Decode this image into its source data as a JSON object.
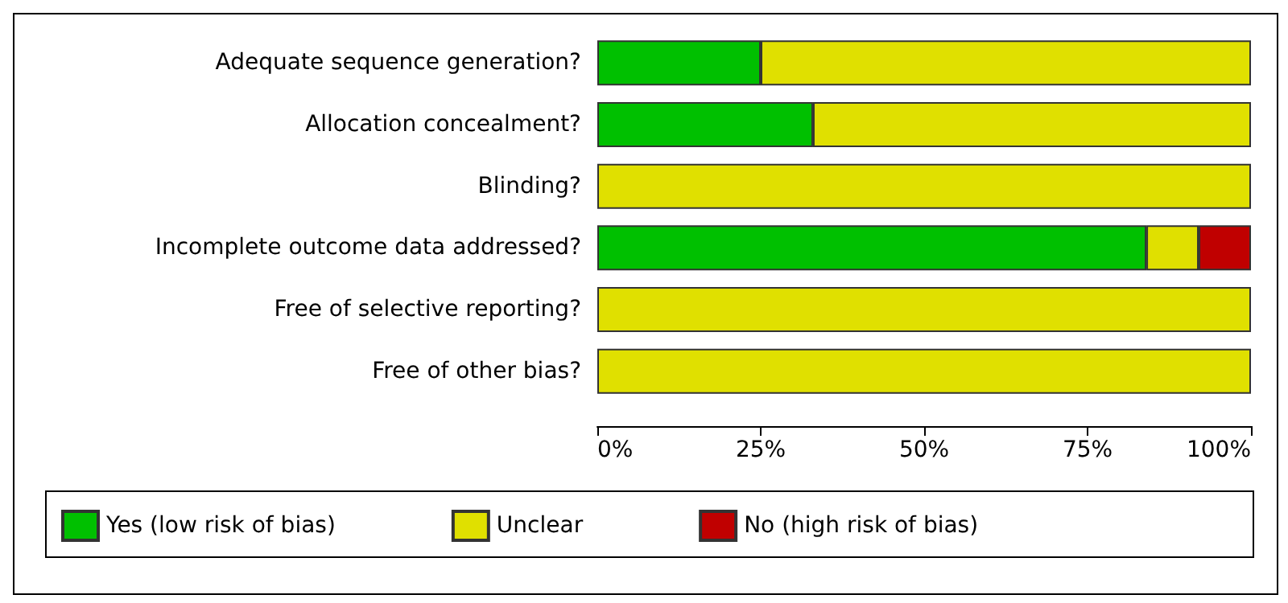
{
  "chart_data": {
    "type": "bar",
    "orientation": "horizontal",
    "stacked": true,
    "categories": [
      "Adequate sequence generation?",
      "Allocation concealment?",
      "Blinding?",
      "Incomplete outcome data addressed?",
      "Free of selective reporting?",
      "Free of other bias?"
    ],
    "series": [
      {
        "name": "Yes (low risk of bias)",
        "color": "#00c000",
        "values": [
          25,
          33,
          0,
          84,
          0,
          0
        ]
      },
      {
        "name": "Unclear",
        "color": "#e0e000",
        "values": [
          75,
          67,
          100,
          8,
          100,
          100
        ]
      },
      {
        "name": "No (high risk of bias)",
        "color": "#c00000",
        "values": [
          0,
          0,
          0,
          8,
          0,
          0
        ]
      }
    ],
    "xlim": [
      0,
      100
    ],
    "xticks": [
      {
        "value": 0,
        "label": "0%"
      },
      {
        "value": 25,
        "label": "25%"
      },
      {
        "value": 50,
        "label": "50%"
      },
      {
        "value": 75,
        "label": "75%"
      },
      {
        "value": 100,
        "label": "100%"
      }
    ],
    "legend": "bottom",
    "grid": false
  }
}
